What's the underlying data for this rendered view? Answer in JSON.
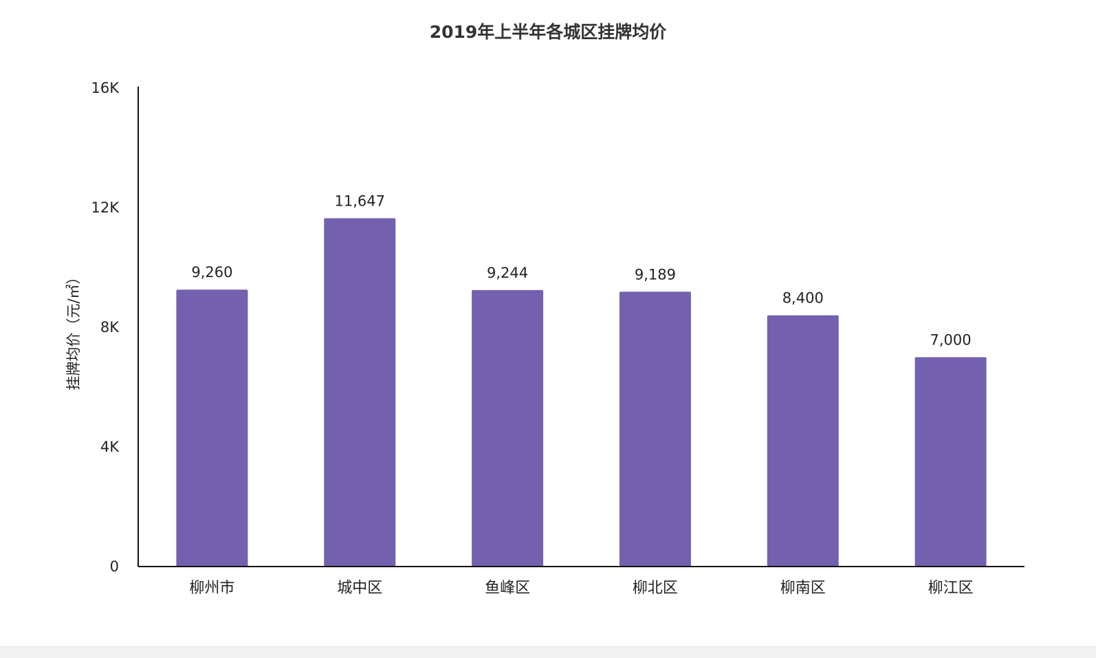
{
  "chart_data": {
    "type": "bar",
    "title": "2019年上半年各城区挂牌均价",
    "xlabel": "",
    "ylabel": "挂牌均价（元/㎡）",
    "categories": [
      "柳州市",
      "城中区",
      "鱼峰区",
      "柳北区",
      "柳南区",
      "柳江区"
    ],
    "values": [
      9260,
      11647,
      9244,
      9189,
      8400,
      7000
    ],
    "value_labels": [
      "9,260",
      "11,647",
      "9,244",
      "9,189",
      "8,400",
      "7,000"
    ],
    "ylim": [
      0,
      16000
    ],
    "yticks": [
      0,
      4000,
      8000,
      12000,
      16000
    ],
    "ytick_labels": [
      "0",
      "4K",
      "8K",
      "12K",
      "16K"
    ],
    "bar_color": "#7360ae",
    "grid": false,
    "legend": "none"
  }
}
